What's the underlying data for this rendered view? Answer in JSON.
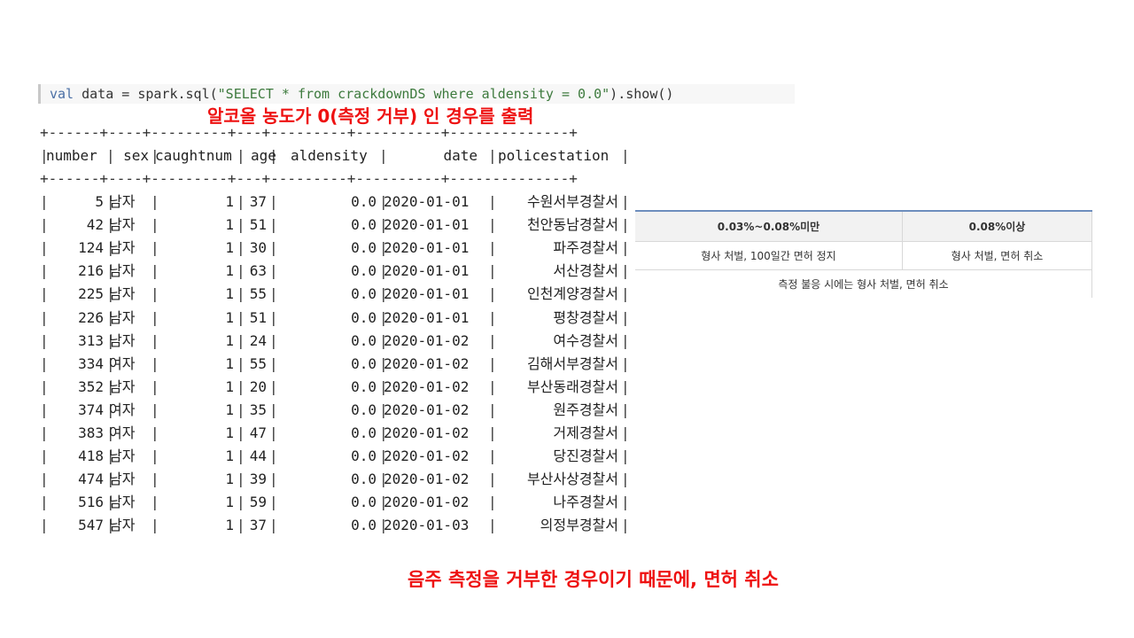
{
  "code": {
    "kw": "val",
    "var": " data = spark.sql(",
    "sql": "\"SELECT * from crackdownDS where aldensity = 0.0\"",
    "tail": ").show()"
  },
  "annotations": {
    "top": "알코올 농도가 0(측정 거부) 인 경우를 출력",
    "bottom": "음주 측정을 거부한 경우이기 때문에, 면허 취소"
  },
  "output": {
    "border": "+------+----+---------+---+---------+----------+--------------+",
    "headers": [
      "number",
      "sex",
      "caughtnum",
      "age",
      "aldensity",
      "date",
      "policestation"
    ],
    "rows": [
      [
        "5",
        "남자",
        "1",
        "37",
        "0.0",
        "2020-01-01",
        "수원서부경찰서"
      ],
      [
        "42",
        "남자",
        "1",
        "51",
        "0.0",
        "2020-01-01",
        "천안동남경찰서"
      ],
      [
        "124",
        "남자",
        "1",
        "30",
        "0.0",
        "2020-01-01",
        "파주경찰서"
      ],
      [
        "216",
        "남자",
        "1",
        "63",
        "0.0",
        "2020-01-01",
        "서산경찰서"
      ],
      [
        "225",
        "남자",
        "1",
        "55",
        "0.0",
        "2020-01-01",
        "인천계양경찰서"
      ],
      [
        "226",
        "남자",
        "1",
        "51",
        "0.0",
        "2020-01-01",
        "평창경찰서"
      ],
      [
        "313",
        "남자",
        "1",
        "24",
        "0.0",
        "2020-01-02",
        "여수경찰서"
      ],
      [
        "334",
        "여자",
        "1",
        "55",
        "0.0",
        "2020-01-02",
        "김해서부경찰서"
      ],
      [
        "352",
        "남자",
        "1",
        "20",
        "0.0",
        "2020-01-02",
        "부산동래경찰서"
      ],
      [
        "374",
        "여자",
        "1",
        "35",
        "0.0",
        "2020-01-02",
        "원주경찰서"
      ],
      [
        "383",
        "여자",
        "1",
        "47",
        "0.0",
        "2020-01-02",
        "거제경찰서"
      ],
      [
        "418",
        "남자",
        "1",
        "44",
        "0.0",
        "2020-01-02",
        "당진경찰서"
      ],
      [
        "474",
        "남자",
        "1",
        "39",
        "0.0",
        "2020-01-02",
        "부산사상경찰서"
      ],
      [
        "516",
        "남자",
        "1",
        "59",
        "0.0",
        "2020-01-02",
        "나주경찰서"
      ],
      [
        "547",
        "남자",
        "1",
        "37",
        "0.0",
        "2020-01-03",
        "의정부경찰서"
      ]
    ]
  },
  "penalty_table": {
    "headers": [
      "0.03%~0.08%미만",
      "0.08%이상"
    ],
    "row1": [
      "형사 처벌, 100일간 면허 정지",
      "형사 처벌, 면허 취소"
    ],
    "row2": "측정 불응 시에는 형사 처벌, 면허 취소"
  },
  "colors": {
    "annotation": "#ee1111",
    "table_accent": "#6d8ebd"
  }
}
